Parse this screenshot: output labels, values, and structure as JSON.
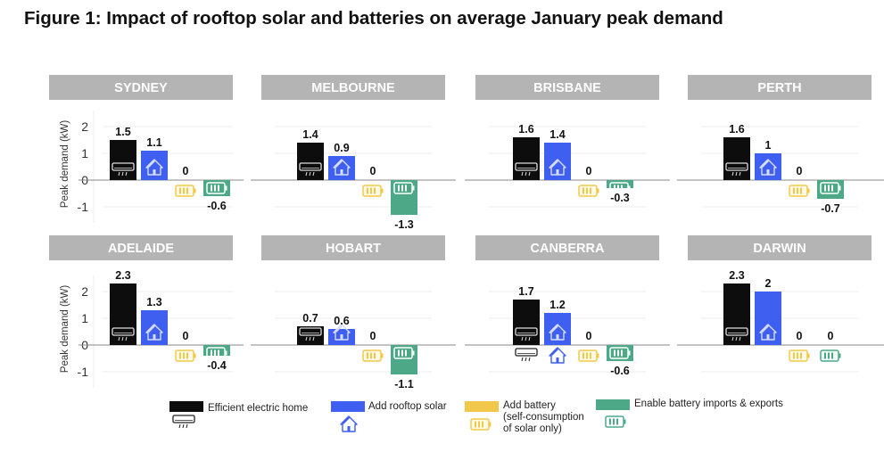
{
  "title": "Figure 1: Impact of rooftop solar and batteries on average January peak demand",
  "chart_data": {
    "type": "bar",
    "title": "Figure 1: Impact of rooftop solar and batteries on average January peak demand",
    "ylabel": "Peak demand (kW)",
    "xlabel": "",
    "ylim": [
      -1.5,
      2.5
    ],
    "yticks": [
      2,
      1,
      0,
      -1
    ],
    "grid": true,
    "legend_position": "bottom",
    "categories": [
      "Efficient electric home",
      "Add rooftop solar",
      "Add battery (self-consumption of solar only)",
      "Enable battery imports & exports"
    ],
    "series_colors": [
      "#0d0d0d",
      "#3f5ff0",
      "#f2c84b",
      "#4da888"
    ],
    "series_icons": [
      "air-conditioner-icon",
      "house-solar-icon",
      "battery-yellow-icon",
      "battery-green-icon"
    ],
    "panels": [
      {
        "name": "SYDNEY",
        "values": [
          1.5,
          1.1,
          0,
          -0.6
        ],
        "labels": [
          "1.5",
          "1.1",
          "0",
          "-0.6"
        ]
      },
      {
        "name": "MELBOURNE",
        "values": [
          1.4,
          0.9,
          0,
          -1.3
        ],
        "labels": [
          "1.4",
          "0.9",
          "0",
          "-1.3"
        ]
      },
      {
        "name": "BRISBANE",
        "values": [
          1.6,
          1.4,
          0,
          -0.3
        ],
        "labels": [
          "1.6",
          "1.4",
          "0",
          "-0.3"
        ]
      },
      {
        "name": "PERTH",
        "values": [
          1.6,
          1.0,
          0,
          -0.7
        ],
        "labels": [
          "1.6",
          "1",
          "0",
          "-0.7"
        ]
      },
      {
        "name": "ADELAIDE",
        "values": [
          2.3,
          1.3,
          0,
          -0.4
        ],
        "labels": [
          "2.3",
          "1.3",
          "0",
          "-0.4"
        ]
      },
      {
        "name": "HOBART",
        "values": [
          0.7,
          0.6,
          0,
          -1.1
        ],
        "labels": [
          "0.7",
          "0.6",
          "0",
          "-1.1"
        ]
      },
      {
        "name": "CANBERRA",
        "values": [
          1.7,
          1.2,
          0,
          -0.6
        ],
        "labels": [
          "1.7",
          "1.2",
          "0",
          "-0.6"
        ]
      },
      {
        "name": "DARWIN",
        "values": [
          2.3,
          2.0,
          0,
          0
        ],
        "labels": [
          "2.3",
          "2",
          "0",
          "0"
        ]
      }
    ],
    "legend": [
      {
        "label": "Efficient electric home",
        "color": "#0d0d0d",
        "icon": "air-conditioner-icon"
      },
      {
        "label": "Add rooftop solar",
        "color": "#3f5ff0",
        "icon": "house-solar-icon"
      },
      {
        "label": "Add battery (self-consumption of solar only)",
        "lines": [
          "Add battery",
          "(self-consumption",
          "of solar only)"
        ],
        "color": "#f2c84b",
        "icon": "battery-yellow-icon"
      },
      {
        "label": "Enable battery imports & exports",
        "color": "#4da888",
        "icon": "battery-green-icon"
      }
    ]
  }
}
